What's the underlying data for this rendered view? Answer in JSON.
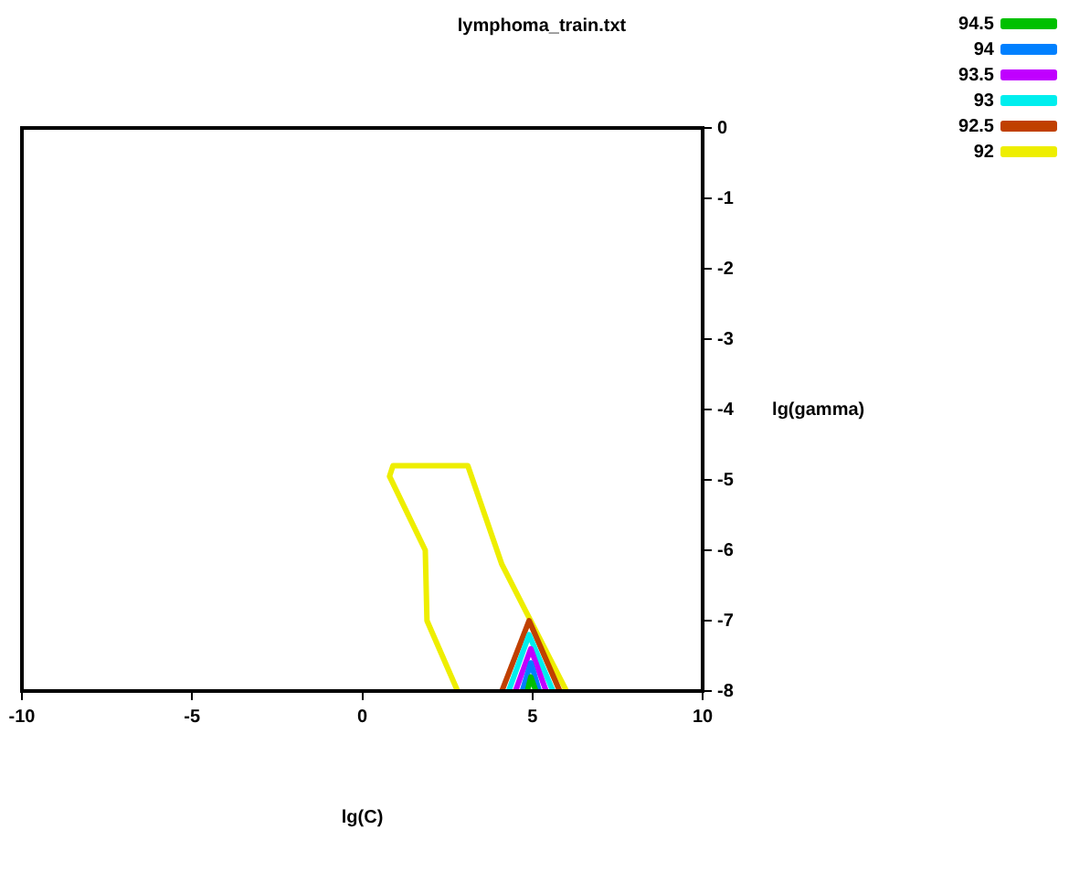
{
  "chart_data": {
    "type": "line",
    "title": "lymphoma_train.txt",
    "xlabel": "lg(C)",
    "ylabel": "lg(gamma)",
    "xlim": [
      -10,
      10
    ],
    "xticks": [
      -10,
      -5,
      0,
      5,
      10
    ],
    "ylim": [
      -8,
      0
    ],
    "yticks": [
      -8,
      -7,
      -6,
      -5,
      -4,
      -3,
      -2,
      -1,
      0
    ],
    "grid": false,
    "legend": "top right",
    "marker": "none",
    "line_style": "solid",
    "series": [
      {
        "name": "94.5",
        "color": "#00c000",
        "x": [
          4.85,
          4.95,
          5.1
        ],
        "values": [
          -8,
          -7.8,
          -8
        ]
      },
      {
        "name": "94",
        "color": "#0080ff",
        "x": [
          4.7,
          4.95,
          5.2
        ],
        "values": [
          -8,
          -7.6,
          -8
        ]
      },
      {
        "name": "93.5",
        "color": "#c000ff",
        "x": [
          4.5,
          4.95,
          5.4
        ],
        "values": [
          -8,
          -7.4,
          -8
        ]
      },
      {
        "name": "93",
        "color": "#00eeee",
        "x": [
          4.3,
          4.9,
          5.6
        ],
        "values": [
          -8,
          -7.2,
          -8
        ]
      },
      {
        "name": "92.5",
        "color": "#c04000",
        "x": [
          4.1,
          4.9,
          5.8
        ],
        "values": [
          -8,
          -7,
          -8
        ]
      },
      {
        "name": "92",
        "color": "#eeee00",
        "x": [
          2.8,
          1.9,
          1.85,
          0.8,
          0.9,
          3.1,
          4.1,
          6
        ],
        "values": [
          -8,
          -7,
          -6,
          -4.95,
          -4.8,
          -4.8,
          -6.2,
          -8
        ]
      }
    ]
  }
}
